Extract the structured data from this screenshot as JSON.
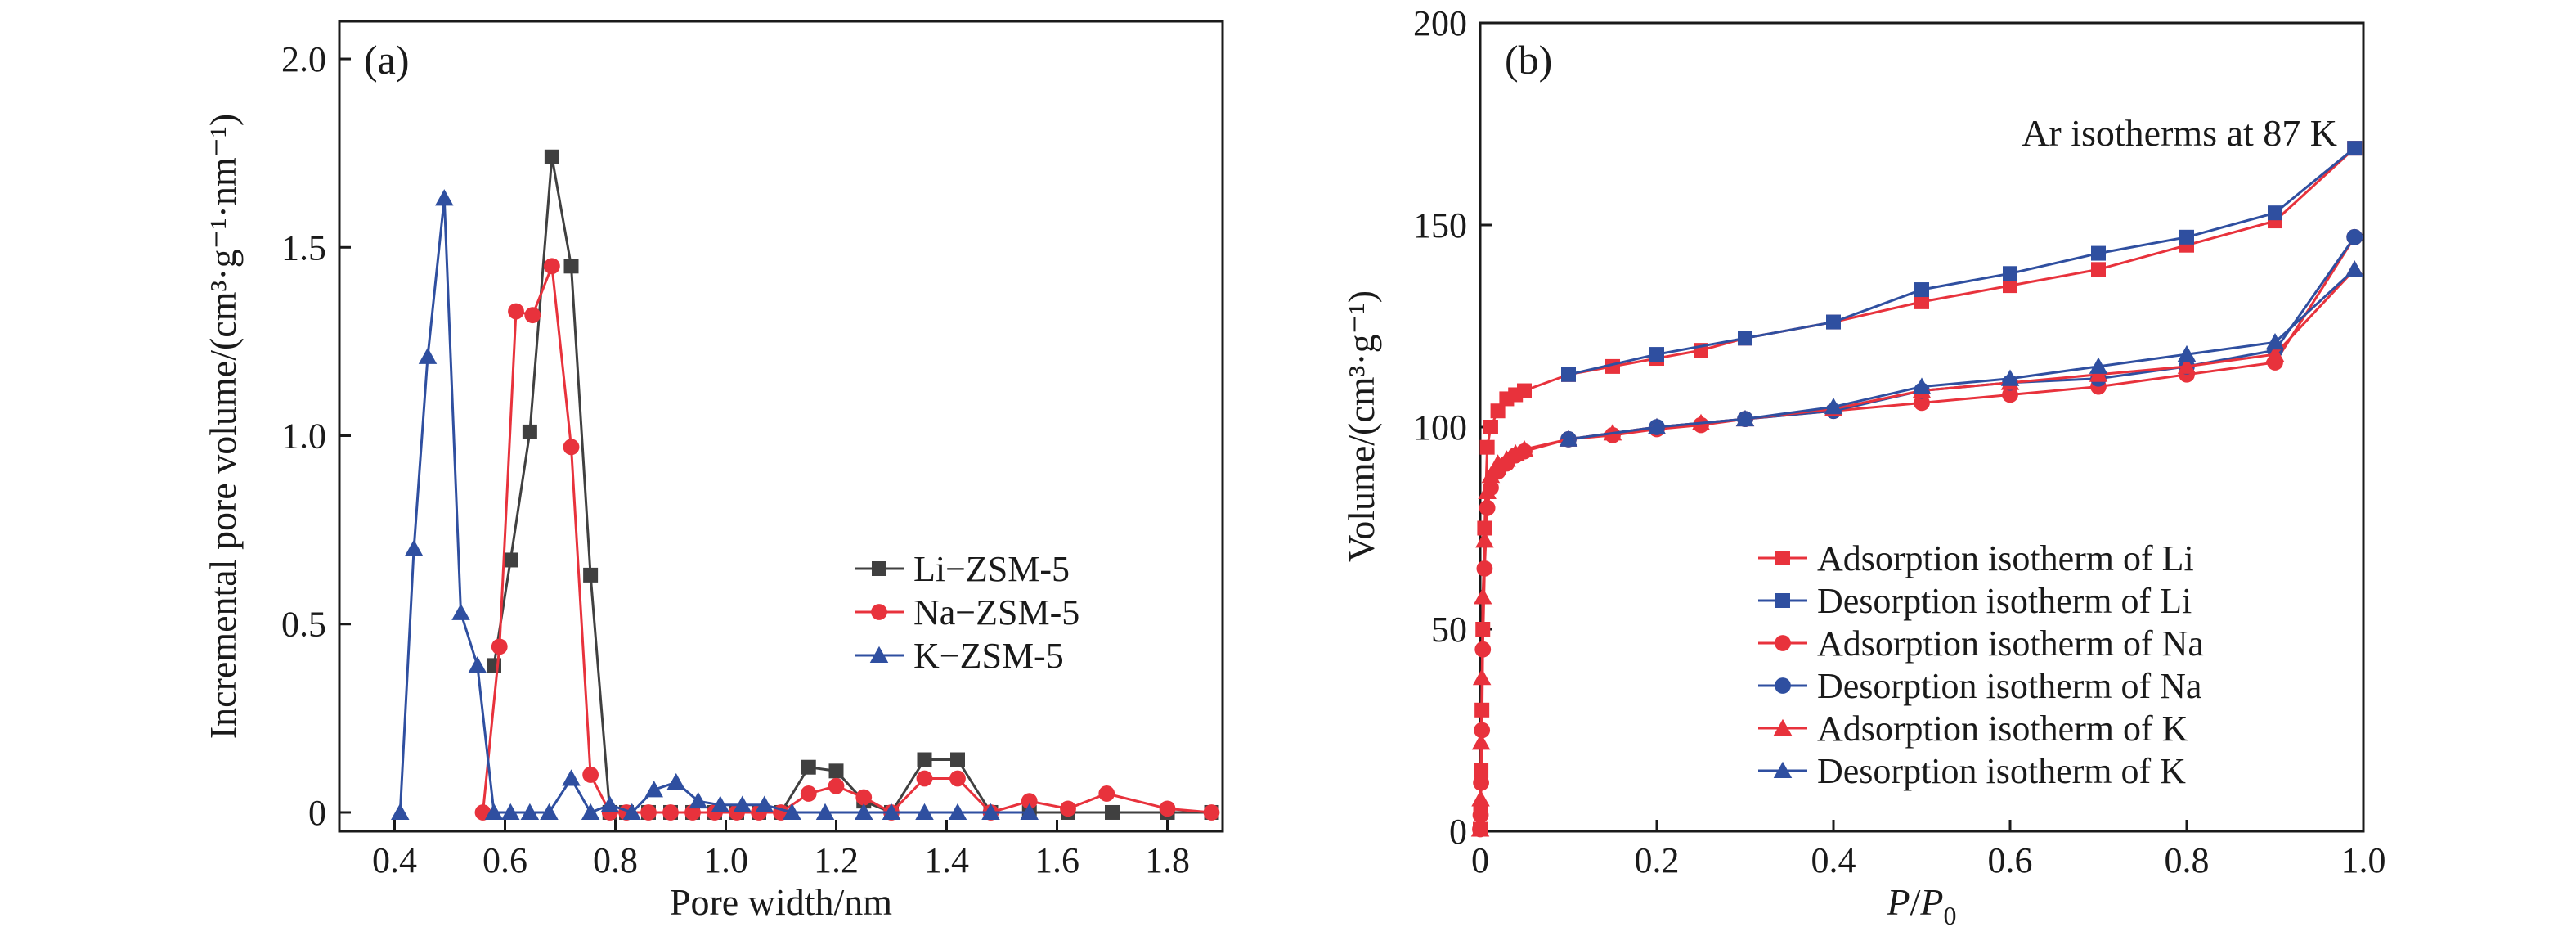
{
  "chart_data": [
    {
      "type": "line",
      "panel_label": "(a)",
      "xlabel": "Pore width/nm",
      "ylabel": "Incremental pore volume/(cm³·g⁻¹·nm⁻¹)",
      "xlim": [
        0.3,
        1.9
      ],
      "ylim": [
        -0.05,
        2.1
      ],
      "xticks": [
        "0.4",
        "0.6",
        "0.8",
        "1.0",
        "1.2",
        "1.4",
        "1.6",
        "1.8"
      ],
      "yticks": [
        "0",
        "0.5",
        "1.0",
        "1.5",
        "2.0"
      ],
      "legend_position": "center-right",
      "series": [
        {
          "name": "Li−ZSM-5",
          "color": "#404040",
          "marker": "square",
          "x": [
            0.58,
            0.61,
            0.645,
            0.685,
            0.72,
            0.755,
            0.79,
            0.82,
            0.86,
            0.9,
            0.94,
            0.98,
            1.02,
            1.06,
            1.1,
            1.15,
            1.2,
            1.25,
            1.3,
            1.36,
            1.42,
            1.48,
            1.55,
            1.62,
            1.7,
            1.8,
            1.88
          ],
          "y": [
            0.39,
            0.67,
            1.01,
            1.74,
            1.45,
            0.63,
            0.0,
            0.0,
            0.0,
            0.0,
            0.0,
            0.0,
            0.0,
            0.0,
            0.0,
            0.12,
            0.11,
            0.03,
            0.0,
            0.14,
            0.14,
            0.0,
            0.0,
            0.0,
            0.0,
            0.0,
            0.0
          ]
        },
        {
          "name": "Na−ZSM-5",
          "color": "#e8323c",
          "marker": "circle",
          "x": [
            0.56,
            0.59,
            0.62,
            0.65,
            0.685,
            0.72,
            0.755,
            0.79,
            0.82,
            0.86,
            0.9,
            0.94,
            0.98,
            1.02,
            1.06,
            1.1,
            1.15,
            1.2,
            1.25,
            1.3,
            1.36,
            1.42,
            1.48,
            1.55,
            1.62,
            1.69,
            1.8,
            1.88
          ],
          "y": [
            0.0,
            0.44,
            1.33,
            1.32,
            1.45,
            0.97,
            0.1,
            0.0,
            0.0,
            0.0,
            0.0,
            0.0,
            0.0,
            0.0,
            0.0,
            0.0,
            0.05,
            0.07,
            0.04,
            0.0,
            0.09,
            0.09,
            0.0,
            0.03,
            0.01,
            0.05,
            0.01,
            0.0
          ]
        },
        {
          "name": "K−ZSM-5",
          "color": "#2f4fa0",
          "marker": "triangle",
          "x": [
            0.41,
            0.435,
            0.46,
            0.49,
            0.52,
            0.55,
            0.58,
            0.61,
            0.645,
            0.68,
            0.72,
            0.755,
            0.79,
            0.83,
            0.87,
            0.91,
            0.95,
            0.99,
            1.03,
            1.07,
            1.12,
            1.18,
            1.25,
            1.3,
            1.36,
            1.42,
            1.48,
            1.55
          ],
          "y": [
            0.0,
            0.7,
            1.21,
            1.63,
            0.53,
            0.39,
            0.0,
            0.0,
            0.0,
            0.0,
            0.09,
            0.0,
            0.02,
            0.0,
            0.06,
            0.08,
            0.03,
            0.02,
            0.02,
            0.02,
            0.0,
            0.0,
            0.0,
            0.0,
            0.0,
            0.0,
            0.0,
            0.0
          ]
        }
      ]
    },
    {
      "type": "line",
      "panel_label": "(b)",
      "annotation": "Ar isotherms at 87 K",
      "xlabel": "P/P0",
      "xlabel_italic_part": "P",
      "xlabel_sep": "/",
      "xlabel_p0_base": "P",
      "xlabel_p0_sub": "0",
      "ylabel": "Volume/(cm³·g⁻¹)",
      "xlim": [
        0.0,
        1.0
      ],
      "ylim": [
        0,
        200
      ],
      "xticks": [
        "0",
        "0.2",
        "0.4",
        "0.6",
        "0.8",
        "1.0"
      ],
      "yticks": [
        "0",
        "50",
        "100",
        "150",
        "200"
      ],
      "legend_position": "bottom-right",
      "series": [
        {
          "name": "Adsorption isotherm of Li",
          "color": "#e8323c",
          "marker": "square",
          "x": [
            0.0,
            0.0005,
            0.001,
            0.002,
            0.003,
            0.005,
            0.008,
            0.012,
            0.02,
            0.03,
            0.04,
            0.05,
            0.1,
            0.15,
            0.2,
            0.25,
            0.3,
            0.4,
            0.5,
            0.6,
            0.7,
            0.8,
            0.9,
            0.99
          ],
          "y": [
            0.5,
            5,
            15,
            30,
            50,
            75,
            95,
            100,
            104,
            107,
            108,
            109,
            113,
            115,
            117,
            119,
            122,
            126,
            131,
            135,
            139,
            145,
            151,
            169
          ]
        },
        {
          "name": "Desorption isotherm of Li",
          "color": "#2f4fa0",
          "marker": "square",
          "x": [
            0.99,
            0.9,
            0.8,
            0.7,
            0.6,
            0.5,
            0.4,
            0.3,
            0.2,
            0.1
          ],
          "y": [
            169,
            153,
            147,
            143,
            138,
            134,
            126,
            122,
            118,
            113
          ]
        },
        {
          "name": "Adsorption isotherm of Na",
          "color": "#e8323c",
          "marker": "circle",
          "x": [
            0.0,
            0.0005,
            0.001,
            0.002,
            0.003,
            0.005,
            0.008,
            0.012,
            0.02,
            0.03,
            0.04,
            0.05,
            0.1,
            0.15,
            0.2,
            0.25,
            0.3,
            0.4,
            0.5,
            0.6,
            0.7,
            0.8,
            0.9,
            0.99
          ],
          "y": [
            0.5,
            4,
            12,
            25,
            45,
            65,
            80,
            85,
            89,
            91,
            93,
            94,
            97,
            98,
            99.5,
            100.5,
            102,
            104,
            106,
            108,
            110,
            113,
            116,
            147
          ]
        },
        {
          "name": "Desorption isotherm of Na",
          "color": "#2f4fa0",
          "marker": "circle",
          "x": [
            0.99,
            0.9,
            0.8,
            0.7,
            0.6,
            0.5,
            0.4,
            0.3,
            0.2,
            0.1
          ],
          "y": [
            147,
            119,
            115,
            112,
            111,
            109,
            104,
            102,
            100,
            97
          ]
        },
        {
          "name": "Adsorption isotherm of K",
          "color": "#e8323c",
          "marker": "triangle",
          "x": [
            0.0,
            0.0005,
            0.001,
            0.002,
            0.003,
            0.005,
            0.008,
            0.012,
            0.02,
            0.03,
            0.04,
            0.05,
            0.1,
            0.15,
            0.2,
            0.25,
            0.3,
            0.4,
            0.5,
            0.6,
            0.7,
            0.8,
            0.9,
            0.99
          ],
          "y": [
            0.5,
            8,
            22,
            38,
            58,
            72,
            84,
            88,
            91,
            92,
            93.5,
            94.5,
            97,
            98.5,
            100,
            101,
            102,
            104.5,
            109,
            111,
            113,
            115,
            118,
            139
          ]
        },
        {
          "name": "Desorption isotherm of K",
          "color": "#2f4fa0",
          "marker": "triangle",
          "x": [
            0.99,
            0.9,
            0.8,
            0.7,
            0.6,
            0.5,
            0.4,
            0.3,
            0.2,
            0.1
          ],
          "y": [
            139,
            121,
            118,
            115,
            112,
            110,
            105,
            102,
            100,
            97
          ]
        }
      ]
    }
  ]
}
